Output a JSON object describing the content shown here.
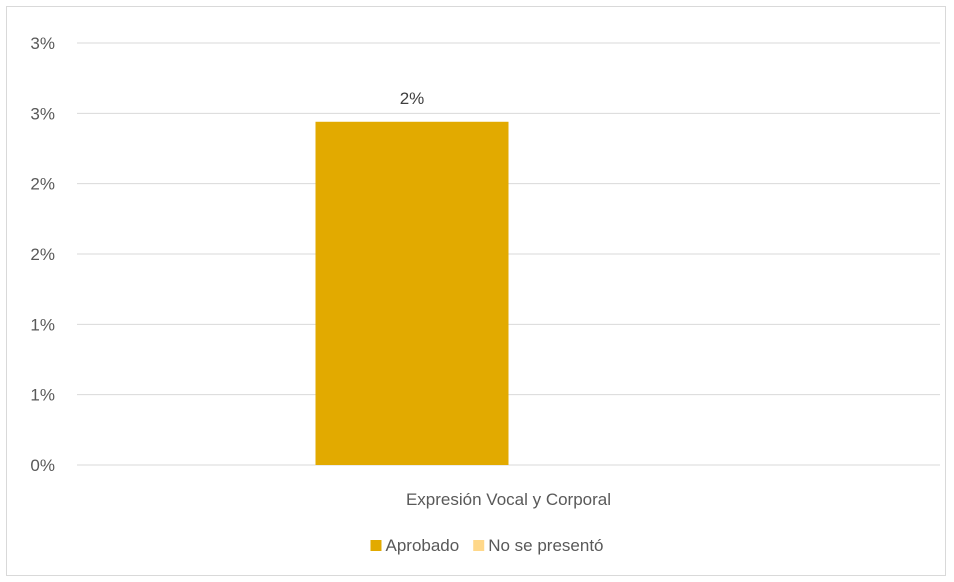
{
  "chart_data": {
    "type": "bar",
    "categories": [
      "Expresión Vocal y Corporal"
    ],
    "series": [
      {
        "name": "Aprobado",
        "values": [
          2.44
        ],
        "color": "#E2AA00",
        "label": "2%"
      },
      {
        "name": "No se presentó",
        "values": [
          0
        ],
        "color": "#FFD88A",
        "label": ""
      }
    ],
    "y_ticks": [
      {
        "value": 0,
        "label": "0%"
      },
      {
        "value": 0.5,
        "label": "1%"
      },
      {
        "value": 1.0,
        "label": "1%"
      },
      {
        "value": 1.5,
        "label": "2%"
      },
      {
        "value": 2.0,
        "label": "2%"
      },
      {
        "value": 2.5,
        "label": "3%"
      },
      {
        "value": 3.0,
        "label": "3%"
      }
    ],
    "ylim": [
      0,
      3.0
    ],
    "title": "",
    "xlabel": "",
    "ylabel": "",
    "grid": true,
    "legend_position": "bottom",
    "colors": {
      "gridline": "#d9d9d9",
      "axis_text": "#595959"
    }
  }
}
